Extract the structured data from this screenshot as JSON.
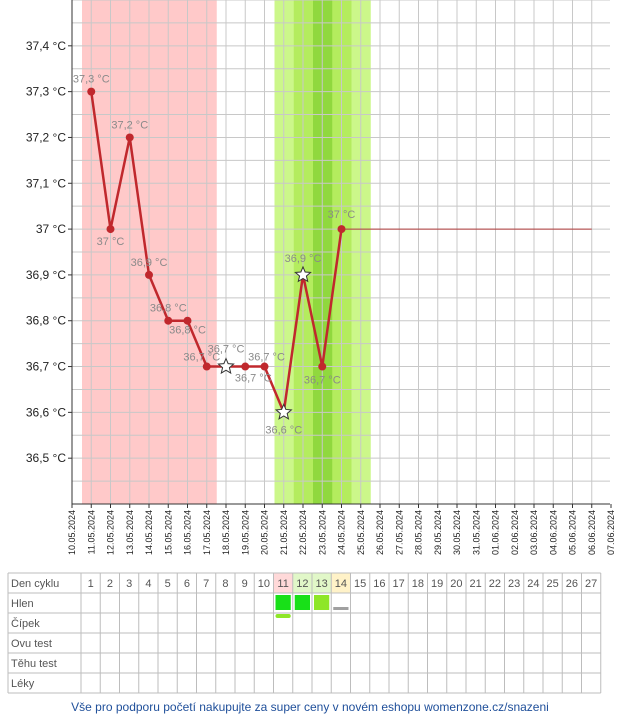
{
  "chart_data": {
    "type": "line",
    "ylim": [
      36.4,
      37.5
    ],
    "yticks": [
      {
        "v": 36.5,
        "label": "36,5 °C"
      },
      {
        "v": 36.6,
        "label": "36,6 °C"
      },
      {
        "v": 36.7,
        "label": "36,7 °C"
      },
      {
        "v": 36.8,
        "label": "36,8 °C"
      },
      {
        "v": 36.9,
        "label": "36,9 °C"
      },
      {
        "v": 37.0,
        "label": "37 °C"
      },
      {
        "v": 37.1,
        "label": "37,1 °C"
      },
      {
        "v": 37.2,
        "label": "37,2 °C"
      },
      {
        "v": 37.3,
        "label": "37,3 °C"
      },
      {
        "v": 37.4,
        "label": "37,4 °C"
      }
    ],
    "dates": [
      "10.05.2024",
      "11.05.2024",
      "12.05.2024",
      "13.05.2024",
      "14.05.2024",
      "15.05.2024",
      "16.05.2024",
      "17.05.2024",
      "18.05.2024",
      "19.05.2024",
      "20.05.2024",
      "21.05.2024",
      "22.05.2024",
      "23.05.2024",
      "24.05.2024",
      "25.05.2024",
      "26.05.2024",
      "27.05.2024",
      "28.05.2024",
      "29.05.2024",
      "30.05.2024",
      "31.05.2024",
      "01.06.2024",
      "02.06.2024",
      "03.06.2024",
      "04.06.2024",
      "05.06.2024",
      "06.06.2024",
      "07.06.2024"
    ],
    "series": [
      {
        "values": [
          {
            "date": "11.05.2024",
            "y": 37.3,
            "label": "37,3 °C",
            "marker": "dot"
          },
          {
            "date": "12.05.2024",
            "y": 37.0,
            "label": "37 °C",
            "marker": "dot"
          },
          {
            "date": "13.05.2024",
            "y": 37.2,
            "label": "37,2 °C",
            "marker": "dot"
          },
          {
            "date": "14.05.2024",
            "y": 36.9,
            "label": "36,9 °C",
            "marker": "dot"
          },
          {
            "date": "15.05.2024",
            "y": 36.8,
            "label": "36,8 °C",
            "marker": "dot"
          },
          {
            "date": "16.05.2024",
            "y": 36.8,
            "label": "36,8 °C",
            "marker": "dot"
          },
          {
            "date": "17.05.2024",
            "y": 36.7,
            "label": "36,7 °C",
            "marker": "dot"
          },
          {
            "date": "18.05.2024",
            "y": 36.7,
            "label": "36,7 °C",
            "marker": "star"
          },
          {
            "date": "19.05.2024",
            "y": 36.7,
            "label": "",
            "marker": "dot"
          },
          {
            "date": "20.05.2024",
            "y": 36.7,
            "label": "36,7 °C",
            "marker": "dot"
          },
          {
            "date": "21.05.2024",
            "y": 36.6,
            "label": "36,6 °C",
            "marker": "star"
          },
          {
            "date": "22.05.2024",
            "y": 36.9,
            "label": "36,9 °C",
            "marker": "star"
          },
          {
            "date": "23.05.2024",
            "y": 36.7,
            "label": "36,7 °C",
            "marker": "dot"
          },
          {
            "date": "24.05.2024",
            "y": 37.0,
            "label": "37 °C",
            "marker": "dot"
          }
        ],
        "color": "#c0282d"
      }
    ],
    "extra_labels": [
      {
        "date": "19.05.2024",
        "text": "36,7 °C"
      }
    ],
    "projection": {
      "from": "24.05.2024",
      "to": "06.06.2024",
      "y": 37.0,
      "color": "#b03a3a"
    },
    "bands": [
      {
        "from": "10.05.2024",
        "to": "17.05.2024",
        "color": "#ffc9c9"
      },
      {
        "from": "20.05.2024",
        "to": "25.05.2024",
        "color": "#ccf78a"
      },
      {
        "from": "21.05.2024",
        "to": "24.05.2024",
        "color": "#b4ec5e"
      },
      {
        "from": "22.05.2024",
        "to": "23.05.2024",
        "color": "#90d83e"
      }
    ],
    "grid": true
  },
  "table": {
    "rows": [
      "Den cyklu",
      "Hlen",
      "Čípek",
      "Ovu test",
      "Těhu test",
      "Léky"
    ],
    "days": [
      "1",
      "2",
      "3",
      "4",
      "5",
      "6",
      "7",
      "8",
      "9",
      "10",
      "11",
      "12",
      "13",
      "14",
      "15",
      "16",
      "17",
      "18",
      "19",
      "20",
      "21",
      "22",
      "23",
      "24",
      "25",
      "26",
      "27"
    ],
    "highlight": [
      {
        "day": "11",
        "color": "#ffd9d9"
      },
      {
        "day": "12",
        "color": "#e1f7c8"
      },
      {
        "day": "13",
        "color": "#e1f7c8"
      },
      {
        "day": "14",
        "color": "#fff2c8"
      }
    ],
    "hlen": [
      {
        "day": "11",
        "color": "#18e018"
      },
      {
        "day": "12",
        "color": "#18e018"
      },
      {
        "day": "13",
        "color": "#8ee628"
      }
    ],
    "hlen_bar": {
      "day": "14",
      "color": "#a0a0a0"
    },
    "cipek_bar": {
      "day": "11",
      "color": "#8ee628"
    }
  },
  "footer": "Vše pro podporu početí nakupujte za super ceny v novém eshopu womenzone.cz/snazeni"
}
